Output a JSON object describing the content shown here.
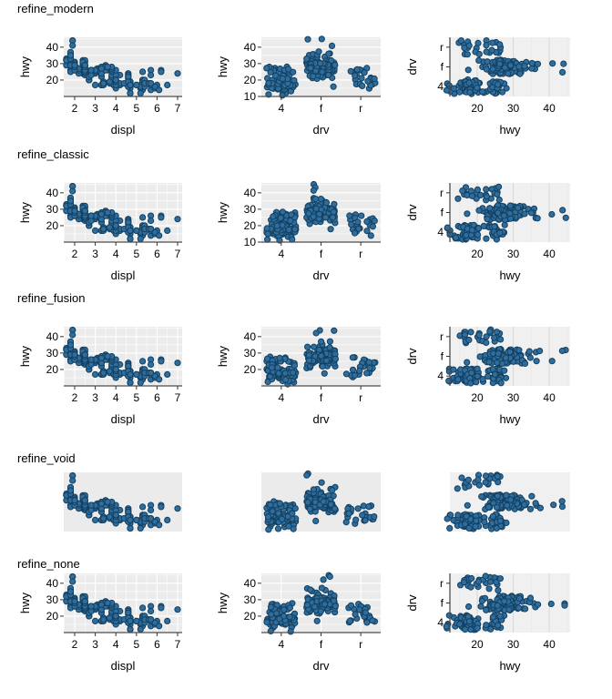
{
  "chart_data": {
    "type": "scatter",
    "description_title": "",
    "figures": [
      {
        "title": "refine_modern",
        "show_axes": true,
        "grid": [
          "h",
          "h",
          "v"
        ],
        "col2_yticks": [
          10,
          20,
          30,
          40
        ]
      },
      {
        "title": "refine_classic",
        "show_axes": true,
        "grid": [
          "hv",
          "h",
          "v"
        ],
        "col2_yticks": [
          10,
          20,
          30,
          40
        ]
      },
      {
        "title": "refine_fusion",
        "show_axes": true,
        "grid": [
          "hv",
          "h",
          "v"
        ],
        "col2_yticks": [
          20,
          30,
          40
        ]
      },
      {
        "title": "refine_void",
        "show_axes": false,
        "grid": [
          "",
          "",
          ""
        ],
        "col2_yticks": []
      },
      {
        "title": "refine_none",
        "show_axes": true,
        "grid": [
          "hv",
          "hv",
          "v"
        ],
        "col2_yticks": [
          20,
          30,
          40
        ]
      }
    ],
    "panels": [
      {
        "xlabel": "displ",
        "ylabel": "hwy",
        "xticks": [
          2,
          3,
          4,
          5,
          6,
          7
        ],
        "yticks": [
          20,
          30,
          40
        ],
        "xlim": [
          1.47,
          7.22
        ],
        "ylim": [
          10,
          46
        ]
      },
      {
        "xlabel": "drv",
        "ylabel": "hwy",
        "xcats": [
          "4",
          "f",
          "r"
        ],
        "ylim": [
          10,
          46
        ]
      },
      {
        "xlabel": "hwy",
        "ylabel": "drv",
        "xticks": [
          20,
          30,
          40
        ],
        "ycats": [
          "r",
          "f",
          "4"
        ],
        "xlim": [
          12.4,
          45.8
        ]
      }
    ],
    "colors": {
      "point_fill": "#2e6d9e",
      "point_stroke": "#14405f",
      "panel": "#ebebeb",
      "panel_light": "#f0f0f0",
      "grid_white": "#ffffff",
      "grid_gray": "#d9d9d9",
      "grid_gray_minor": "#e7e7e7",
      "axis_line": "#4d4d4d",
      "tick": "#333333",
      "text": "#000000"
    },
    "dataset": {
      "displ": [
        1.8,
        1.8,
        2.0,
        2.0,
        2.8,
        2.8,
        3.1,
        1.8,
        1.8,
        2.0,
        2.0,
        2.8,
        2.8,
        3.1,
        3.1,
        2.8,
        3.1,
        4.2,
        5.3,
        5.3,
        5.3,
        5.7,
        6.0,
        5.7,
        5.7,
        6.2,
        6.2,
        7.0,
        5.3,
        5.3,
        5.7,
        6.5,
        2.4,
        2.4,
        3.1,
        3.5,
        3.6,
        2.4,
        3.0,
        3.3,
        3.3,
        3.3,
        3.3,
        3.3,
        3.8,
        3.8,
        3.8,
        4.0,
        3.7,
        3.7,
        3.9,
        3.9,
        4.7,
        4.7,
        4.7,
        5.2,
        5.2,
        3.9,
        4.7,
        4.7,
        4.7,
        4.7,
        5.2,
        5.9,
        4.7,
        4.7,
        4.7,
        4.7,
        4.7,
        4.7,
        5.2,
        5.2,
        5.7,
        5.9,
        4.6,
        5.4,
        5.4,
        4.0,
        4.0,
        4.0,
        4.0,
        4.6,
        5.0,
        4.2,
        4.2,
        4.6,
        4.6,
        4.6,
        4.6,
        5.4,
        3.8,
        3.8,
        4.0,
        4.6,
        4.6,
        4.6,
        4.6,
        4.6,
        5.4,
        1.6,
        1.6,
        1.6,
        1.6,
        1.6,
        1.8,
        1.8,
        1.8,
        2.0,
        2.4,
        2.4,
        2.4,
        2.4,
        2.5,
        2.5,
        3.3,
        2.0,
        2.0,
        2.0,
        2.0,
        2.7,
        2.7,
        2.7,
        3.0,
        3.7,
        4.0,
        4.7,
        4.7,
        4.7,
        5.7,
        6.1,
        4.0,
        4.2,
        4.4,
        4.6,
        5.4,
        5.4,
        5.4,
        4.0,
        4.0,
        4.6,
        5.0,
        2.4,
        2.4,
        2.5,
        2.5,
        3.5,
        3.5,
        3.0,
        3.0,
        3.5,
        3.3,
        3.3,
        4.0,
        5.6,
        3.1,
        3.8,
        3.8,
        3.8,
        5.3,
        2.5,
        2.5,
        2.5,
        2.5,
        2.5,
        2.5,
        2.2,
        2.2,
        2.5,
        2.5,
        2.5,
        2.5,
        2.5,
        2.5,
        2.7,
        2.7,
        3.4,
        3.4,
        4.0,
        4.7,
        2.2,
        2.2,
        2.4,
        2.4,
        3.0,
        3.0,
        3.5,
        2.2,
        2.2,
        2.4,
        2.4,
        3.0,
        3.0,
        3.3,
        1.8,
        1.8,
        1.8,
        1.8,
        1.8,
        4.7,
        5.7,
        2.7,
        2.7,
        2.7,
        3.4,
        3.4,
        4.0,
        4.0,
        2.0,
        2.0,
        2.0,
        2.0,
        2.8,
        1.9,
        2.0,
        2.0,
        2.0,
        2.0,
        2.5,
        2.5,
        2.8,
        2.8,
        1.9,
        1.9,
        2.0,
        2.0,
        2.5,
        2.5,
        1.8,
        1.8,
        2.0,
        2.0,
        2.8,
        2.8,
        3.6
      ],
      "hwy": [
        29,
        29,
        31,
        30,
        26,
        26,
        27,
        26,
        25,
        28,
        27,
        25,
        25,
        25,
        25,
        24,
        25,
        23,
        20,
        15,
        20,
        17,
        17,
        26,
        23,
        26,
        25,
        24,
        14,
        19,
        14,
        17,
        27,
        30,
        26,
        29,
        26,
        24,
        24,
        22,
        22,
        24,
        24,
        17,
        22,
        21,
        23,
        23,
        19,
        18,
        17,
        17,
        19,
        19,
        12,
        17,
        15,
        17,
        17,
        17,
        18,
        16,
        16,
        15,
        17,
        15,
        17,
        17,
        12,
        17,
        16,
        12,
        17,
        16,
        17,
        17,
        18,
        17,
        19,
        17,
        19,
        19,
        17,
        17,
        17,
        16,
        18,
        17,
        17,
        19,
        26,
        25,
        26,
        24,
        21,
        22,
        23,
        22,
        20,
        33,
        32,
        32,
        29,
        32,
        34,
        36,
        36,
        29,
        26,
        27,
        30,
        31,
        26,
        26,
        28,
        26,
        29,
        28,
        27,
        24,
        24,
        24,
        17,
        19,
        17,
        19,
        19,
        12,
        18,
        14,
        15,
        18,
        18,
        16,
        17,
        16,
        18,
        17,
        19,
        19,
        17,
        31,
        32,
        31,
        32,
        26,
        27,
        26,
        25,
        26,
        17,
        17,
        20,
        18,
        26,
        26,
        27,
        28,
        25,
        23,
        24,
        25,
        27,
        25,
        26,
        26,
        24,
        26,
        25,
        25,
        26,
        27,
        26,
        20,
        20,
        19,
        17,
        20,
        17,
        26,
        27,
        30,
        31,
        26,
        26,
        28,
        26,
        27,
        30,
        31,
        26,
        26,
        27,
        30,
        33,
        35,
        37,
        35,
        17,
        18,
        20,
        22,
        22,
        19,
        18,
        20,
        20,
        29,
        26,
        29,
        29,
        24,
        44,
        29,
        26,
        29,
        29,
        29,
        29,
        24,
        23,
        44,
        41,
        29,
        26,
        28,
        29,
        29,
        29,
        28,
        29,
        26,
        26,
        28
      ],
      "drv_groups": [
        "fffffff44444444444",
        "rrrrrrrrrr4444fffff",
        "fffffffffff44444444444444444444444444",
        "rrr4444444444444rrrrrrrrr",
        "fffffffff",
        "ffffffffffffff",
        "44444444",
        "4444",
        "rrr",
        "4444",
        "fffffffff4444",
        "fffff",
        "44444444444444",
        "444444fffffffffffffffffff444444444",
        "fffffffffffffffffffffffffff"
      ]
    }
  }
}
